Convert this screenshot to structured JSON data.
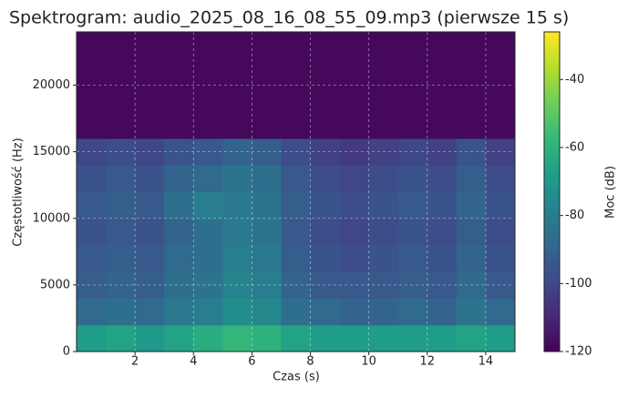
{
  "chart_data": {
    "type": "spectrogram",
    "title": "Spektrogram: audio_2025_08_16_08_55_09.mp3 (pierwsze 15 s)",
    "x_label": "Czas (s)",
    "y_label": "Częstotliwość (Hz)",
    "colorbar_label": "Moc (dB)",
    "xbins": [
      0,
      1,
      2,
      3,
      4,
      5,
      6,
      7,
      8,
      9,
      10,
      11,
      12,
      13,
      14,
      15
    ],
    "ybins": [
      0,
      2000,
      4000,
      6000,
      8000,
      10000,
      12000,
      14000,
      16000,
      18000,
      20000,
      22000,
      24000
    ],
    "values": [
      [
        -68,
        -66,
        -70,
        -66,
        -62,
        -58,
        -60,
        -66,
        -68,
        -68,
        -68,
        -68,
        -68,
        -66,
        -68
      ],
      [
        -88,
        -86,
        -88,
        -82,
        -80,
        -74,
        -76,
        -86,
        -88,
        -90,
        -90,
        -88,
        -90,
        -84,
        -88
      ],
      [
        -92,
        -90,
        -92,
        -86,
        -84,
        -78,
        -80,
        -90,
        -94,
        -94,
        -94,
        -92,
        -94,
        -88,
        -94
      ],
      [
        -94,
        -92,
        -94,
        -88,
        -86,
        -80,
        -82,
        -92,
        -96,
        -98,
        -96,
        -94,
        -96,
        -90,
        -96
      ],
      [
        -96,
        -94,
        -96,
        -90,
        -86,
        -82,
        -84,
        -94,
        -98,
        -100,
        -98,
        -96,
        -98,
        -92,
        -98
      ],
      [
        -94,
        -92,
        -94,
        -86,
        -80,
        -82,
        -84,
        -92,
        -96,
        -98,
        -96,
        -94,
        -96,
        -90,
        -96
      ],
      [
        -96,
        -94,
        -96,
        -90,
        -88,
        -84,
        -86,
        -94,
        -98,
        -100,
        -98,
        -96,
        -98,
        -92,
        -98
      ],
      [
        -100,
        -98,
        -100,
        -96,
        -94,
        -90,
        -92,
        -98,
        -102,
        -104,
        -102,
        -100,
        -102,
        -96,
        -102
      ],
      [
        -118,
        -118,
        -118,
        -118,
        -118,
        -118,
        -118,
        -118,
        -118,
        -118,
        -118,
        -118,
        -118,
        -118,
        -118
      ],
      [
        -118,
        -118,
        -118,
        -118,
        -118,
        -118,
        -118,
        -118,
        -118,
        -118,
        -118,
        -118,
        -118,
        -118,
        -118
      ],
      [
        -118,
        -118,
        -118,
        -118,
        -118,
        -118,
        -118,
        -118,
        -118,
        -118,
        -118,
        -118,
        -118,
        -118,
        -118
      ],
      [
        -118,
        -118,
        -118,
        -118,
        -118,
        -118,
        -118,
        -118,
        -118,
        -118,
        -118,
        -118,
        -118,
        -118,
        -118
      ]
    ],
    "xlim": [
      0,
      15
    ],
    "xticks": [
      2,
      4,
      6,
      8,
      10,
      12,
      14
    ],
    "ylim": [
      0,
      24000
    ],
    "yticks": [
      0,
      5000,
      10000,
      15000,
      20000
    ],
    "clim": [
      -120,
      -26
    ],
    "cticks": [
      -120,
      -100,
      -80,
      -60,
      -40
    ],
    "colormap": "viridis",
    "grid": true
  }
}
